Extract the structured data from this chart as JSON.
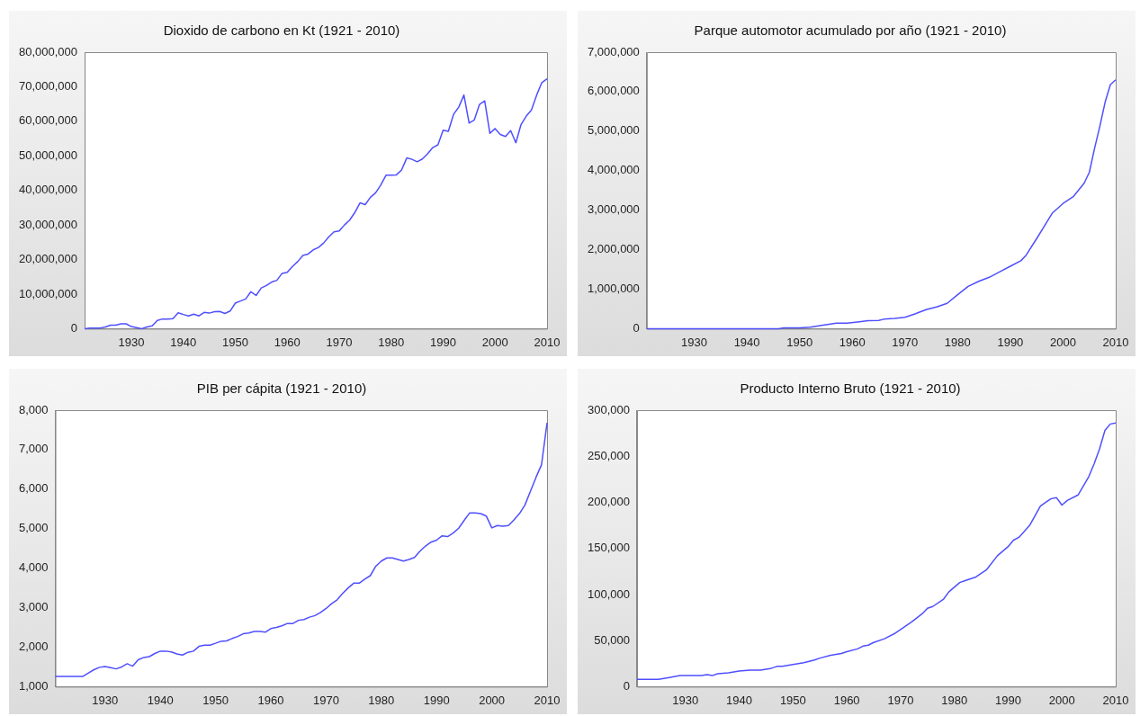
{
  "chart_data": [
    {
      "type": "line",
      "title": "Dioxido de carbono en Kt (1921 - 2010)",
      "color": "#4f4fff",
      "grid": false,
      "xlim": [
        1921,
        2010
      ],
      "xticks": [
        1930,
        1940,
        1950,
        1960,
        1970,
        1980,
        1990,
        2000,
        2010
      ],
      "ylim": [
        0,
        80000000
      ],
      "yticks": [
        {
          "value": 0,
          "label": "0"
        },
        {
          "value": 10000000,
          "label": "10,000,000"
        },
        {
          "value": 20000000,
          "label": "20,000,000"
        },
        {
          "value": 30000000,
          "label": "30,000,000"
        },
        {
          "value": 40000000,
          "label": "40,000,000"
        },
        {
          "value": 50000000,
          "label": "50,000,000"
        },
        {
          "value": 60000000,
          "label": "60,000,000"
        },
        {
          "value": 70000000,
          "label": "70,000,000"
        },
        {
          "value": 80000000,
          "label": "80,000,000"
        }
      ],
      "x": [
        1921,
        1922,
        1923,
        1924,
        1925,
        1926,
        1927,
        1928,
        1929,
        1930,
        1931,
        1932,
        1933,
        1934,
        1935,
        1936,
        1937,
        1938,
        1939,
        1940,
        1941,
        1942,
        1943,
        1944,
        1945,
        1946,
        1947,
        1948,
        1949,
        1950,
        1951,
        1952,
        1953,
        1954,
        1955,
        1956,
        1957,
        1958,
        1959,
        1960,
        1961,
        1962,
        1963,
        1964,
        1965,
        1966,
        1967,
        1968,
        1969,
        1970,
        1971,
        1972,
        1973,
        1974,
        1975,
        1976,
        1977,
        1978,
        1979,
        1980,
        1981,
        1982,
        1983,
        1984,
        1985,
        1986,
        1987,
        1988,
        1989,
        1990,
        1991,
        1992,
        1993,
        1994,
        1995,
        1996,
        1997,
        1998,
        1999,
        2000,
        2001,
        2002,
        2003,
        2004,
        2005,
        2006,
        2007,
        2008,
        2009,
        2010
      ],
      "values": [
        0,
        200000,
        200000,
        200000,
        500000,
        1000000,
        1000000,
        1400000,
        1400000,
        600000,
        300000,
        0,
        500000,
        800000,
        2400000,
        2800000,
        2800000,
        2900000,
        4600000,
        4100000,
        3700000,
        4200000,
        3700000,
        4700000,
        4500000,
        4900000,
        5000000,
        4400000,
        5100000,
        7400000,
        8000000,
        8600000,
        10700000,
        9600000,
        11800000,
        12500000,
        13500000,
        14000000,
        16000000,
        16300000,
        18000000,
        19400000,
        21200000,
        21600000,
        22800000,
        23500000,
        24800000,
        26600000,
        28000000,
        28300000,
        30000000,
        31400000,
        33600000,
        36400000,
        35900000,
        38000000,
        39300000,
        41600000,
        44400000,
        44400000,
        44500000,
        45900000,
        49400000,
        49000000,
        48300000,
        49100000,
        50600000,
        52400000,
        53200000,
        57400000,
        57100000,
        62000000,
        64100000,
        67600000,
        59500000,
        60400000,
        64900000,
        65900000,
        56500000,
        57900000,
        56200000,
        55600000,
        57300000,
        53800000,
        59100000,
        61500000,
        63300000,
        67600000,
        71200000,
        72300000
      ]
    },
    {
      "type": "line",
      "title": "Parque automotor acumulado por año (1921 - 2010)",
      "color": "#4f4fff",
      "grid": false,
      "xlim": [
        1921,
        2010
      ],
      "xticks": [
        1930,
        1940,
        1950,
        1960,
        1970,
        1980,
        1990,
        2000,
        2010
      ],
      "ylim": [
        0,
        7000000
      ],
      "yticks": [
        {
          "value": 0,
          "label": "0"
        },
        {
          "value": 1000000,
          "label": "1,000,000"
        },
        {
          "value": 2000000,
          "label": "2,000,000"
        },
        {
          "value": 3000000,
          "label": "3,000,000"
        },
        {
          "value": 4000000,
          "label": "4,000,000"
        },
        {
          "value": 5000000,
          "label": "5,000,000"
        },
        {
          "value": 6000000,
          "label": "6,000,000"
        },
        {
          "value": 7000000,
          "label": "7,000,000"
        }
      ],
      "x": [
        1921,
        1930,
        1940,
        1946,
        1947,
        1950,
        1952,
        1955,
        1957,
        1959,
        1961,
        1963,
        1965,
        1966,
        1968,
        1970,
        1972,
        1974,
        1976,
        1978,
        1980,
        1982,
        1984,
        1986,
        1988,
        1990,
        1992,
        1993,
        1995,
        1998,
        2000,
        2002,
        2004,
        2005,
        2006,
        2007,
        2008,
        2009,
        2010
      ],
      "values": [
        0,
        0,
        0,
        0,
        20000,
        20000,
        40000,
        100000,
        140000,
        140000,
        170000,
        200000,
        210000,
        240000,
        260000,
        290000,
        380000,
        480000,
        550000,
        640000,
        860000,
        1070000,
        1200000,
        1300000,
        1440000,
        1580000,
        1720000,
        1860000,
        2280000,
        2930000,
        3170000,
        3350000,
        3680000,
        3960000,
        4570000,
        5130000,
        5740000,
        6180000,
        6300000
      ]
    },
    {
      "type": "line",
      "title": "PIB per cápita (1921 - 2010)",
      "color": "#4f4fff",
      "grid": false,
      "xlim": [
        1921,
        2010
      ],
      "xticks": [
        1930,
        1940,
        1950,
        1960,
        1970,
        1980,
        1990,
        2000,
        2010
      ],
      "ylim": [
        1000,
        8000
      ],
      "yticks": [
        {
          "value": 1000,
          "label": "1,000"
        },
        {
          "value": 2000,
          "label": "2,000"
        },
        {
          "value": 3000,
          "label": "3,000"
        },
        {
          "value": 4000,
          "label": "4,000"
        },
        {
          "value": 5000,
          "label": "5,000"
        },
        {
          "value": 6000,
          "label": "6,000"
        },
        {
          "value": 7000,
          "label": "7,000"
        },
        {
          "value": 8000,
          "label": "8,000"
        }
      ],
      "x": [
        1921,
        1922,
        1923,
        1924,
        1925,
        1926,
        1927,
        1928,
        1929,
        1930,
        1931,
        1932,
        1933,
        1934,
        1935,
        1936,
        1937,
        1938,
        1939,
        1940,
        1941,
        1942,
        1943,
        1944,
        1945,
        1946,
        1947,
        1948,
        1949,
        1950,
        1951,
        1952,
        1953,
        1954,
        1955,
        1956,
        1957,
        1958,
        1959,
        1960,
        1961,
        1962,
        1963,
        1964,
        1965,
        1966,
        1967,
        1968,
        1969,
        1970,
        1971,
        1972,
        1973,
        1974,
        1975,
        1976,
        1977,
        1978,
        1979,
        1980,
        1981,
        1982,
        1983,
        1984,
        1985,
        1986,
        1987,
        1988,
        1989,
        1990,
        1991,
        1992,
        1993,
        1994,
        1995,
        1996,
        1997,
        1998,
        1999,
        2000,
        2001,
        2002,
        2003,
        2004,
        2005,
        2006,
        2007,
        2008,
        2009,
        2010
      ],
      "values": [
        1260,
        1260,
        1260,
        1260,
        1260,
        1260,
        1350,
        1430,
        1490,
        1510,
        1480,
        1450,
        1500,
        1580,
        1520,
        1680,
        1740,
        1760,
        1840,
        1900,
        1900,
        1880,
        1830,
        1800,
        1870,
        1900,
        2020,
        2050,
        2050,
        2100,
        2150,
        2160,
        2220,
        2270,
        2340,
        2360,
        2400,
        2400,
        2380,
        2470,
        2500,
        2540,
        2600,
        2600,
        2680,
        2700,
        2760,
        2800,
        2880,
        2980,
        3100,
        3200,
        3360,
        3500,
        3620,
        3620,
        3720,
        3810,
        4050,
        4180,
        4260,
        4260,
        4220,
        4180,
        4220,
        4270,
        4430,
        4560,
        4660,
        4710,
        4820,
        4800,
        4890,
        5010,
        5210,
        5400,
        5400,
        5380,
        5320,
        5020,
        5080,
        5060,
        5080,
        5220,
        5380,
        5600,
        5950,
        6300,
        6620,
        7680
      ]
    },
    {
      "type": "line",
      "title": "Producto Interno Bruto (1921 - 2010)",
      "color": "#4f4fff",
      "grid": false,
      "xlim": [
        1921,
        2010
      ],
      "xticks": [
        1930,
        1940,
        1950,
        1960,
        1970,
        1980,
        1990,
        2000,
        2010
      ],
      "ylim": [
        0,
        300000
      ],
      "yticks": [
        {
          "value": 0,
          "label": "0"
        },
        {
          "value": 50000,
          "label": "50,000"
        },
        {
          "value": 100000,
          "label": "100,000"
        },
        {
          "value": 150000,
          "label": "150,000"
        },
        {
          "value": 200000,
          "label": "200,000"
        },
        {
          "value": 250000,
          "label": "250,000"
        },
        {
          "value": 300000,
          "label": "300,000"
        }
      ],
      "x": [
        1921,
        1923,
        1925,
        1927,
        1929,
        1931,
        1933,
        1934,
        1935,
        1936,
        1938,
        1940,
        1942,
        1944,
        1945,
        1946,
        1947,
        1948,
        1950,
        1952,
        1954,
        1955,
        1957,
        1959,
        1960,
        1962,
        1963,
        1964,
        1965,
        1967,
        1969,
        1970,
        1972,
        1974,
        1975,
        1976,
        1978,
        1979,
        1981,
        1982,
        1984,
        1986,
        1988,
        1990,
        1991,
        1992,
        1994,
        1996,
        1997,
        1998,
        1999,
        2000,
        2001,
        2003,
        2005,
        2006,
        2007,
        2008,
        2009,
        2010
      ],
      "values": [
        8000,
        8000,
        8000,
        10000,
        12000,
        12000,
        12000,
        13000,
        12000,
        14000,
        15000,
        17000,
        18000,
        18000,
        19000,
        20000,
        22000,
        22000,
        24000,
        26000,
        29000,
        31000,
        34000,
        36000,
        38000,
        41000,
        44000,
        45000,
        48000,
        52000,
        58000,
        62000,
        70000,
        79000,
        85000,
        87000,
        95000,
        103000,
        113000,
        115000,
        119000,
        127000,
        142000,
        152000,
        159000,
        162000,
        175000,
        196000,
        200000,
        204000,
        205000,
        197000,
        202000,
        208000,
        228000,
        242000,
        258000,
        278000,
        285000,
        286000
      ]
    }
  ]
}
